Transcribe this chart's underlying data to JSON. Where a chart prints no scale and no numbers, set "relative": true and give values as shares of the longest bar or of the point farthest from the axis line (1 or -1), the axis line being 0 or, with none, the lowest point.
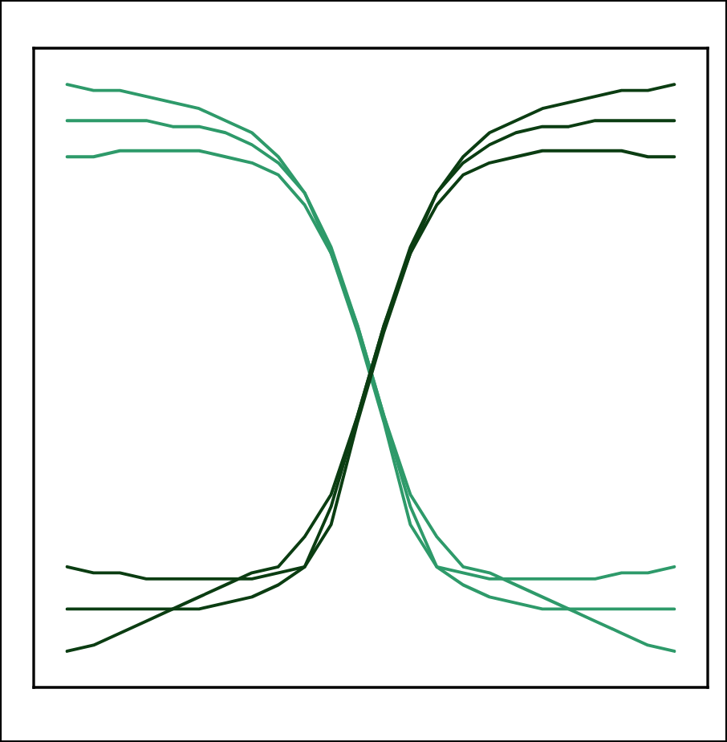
{
  "chart_data": {
    "type": "line",
    "relative": true,
    "grid": false,
    "legend": false,
    "categories": [
      null,
      null,
      null,
      null,
      null,
      null,
      null,
      null,
      null,
      null,
      null,
      null,
      null,
      null,
      null,
      null,
      null,
      null,
      null,
      null,
      null,
      null,
      null,
      null
    ],
    "series": [
      {
        "color": "#2e9a6a",
        "values": [
          1.0,
          0.99,
          0.99,
          0.98,
          0.97,
          0.96,
          0.94,
          0.92,
          0.88,
          0.82,
          0.73,
          0.6,
          0.45,
          0.32,
          0.25,
          0.2,
          0.19,
          0.17,
          0.15,
          0.13,
          0.11,
          0.09,
          0.07,
          0.06
        ]
      },
      {
        "color": "#2e9a6a",
        "values": [
          0.94,
          0.94,
          0.94,
          0.94,
          0.93,
          0.93,
          0.92,
          0.9,
          0.87,
          0.82,
          0.72,
          0.6,
          0.45,
          0.3,
          0.2,
          0.17,
          0.15,
          0.14,
          0.13,
          0.13,
          0.13,
          0.13,
          0.13,
          0.13
        ]
      },
      {
        "color": "#2e9a6a",
        "values": [
          0.88,
          0.88,
          0.89,
          0.89,
          0.89,
          0.89,
          0.88,
          0.87,
          0.85,
          0.8,
          0.72,
          0.59,
          0.44,
          0.27,
          0.2,
          0.19,
          0.18,
          0.18,
          0.18,
          0.18,
          0.18,
          0.19,
          0.19,
          0.2
        ]
      },
      {
        "color": "#0b3d12",
        "values": [
          0.06,
          0.07,
          0.09,
          0.11,
          0.13,
          0.15,
          0.17,
          0.19,
          0.2,
          0.25,
          0.32,
          0.45,
          0.6,
          0.73,
          0.82,
          0.88,
          0.92,
          0.94,
          0.96,
          0.97,
          0.98,
          0.99,
          0.99,
          1.0
        ]
      },
      {
        "color": "#0b3d12",
        "values": [
          0.13,
          0.13,
          0.13,
          0.13,
          0.13,
          0.13,
          0.14,
          0.15,
          0.17,
          0.2,
          0.3,
          0.45,
          0.6,
          0.72,
          0.82,
          0.87,
          0.9,
          0.92,
          0.93,
          0.93,
          0.94,
          0.94,
          0.94,
          0.94
        ]
      },
      {
        "color": "#0b3d12",
        "values": [
          0.2,
          0.19,
          0.19,
          0.18,
          0.18,
          0.18,
          0.18,
          0.18,
          0.19,
          0.2,
          0.27,
          0.44,
          0.59,
          0.72,
          0.8,
          0.85,
          0.87,
          0.88,
          0.89,
          0.89,
          0.89,
          0.89,
          0.88,
          0.88
        ]
      }
    ]
  }
}
